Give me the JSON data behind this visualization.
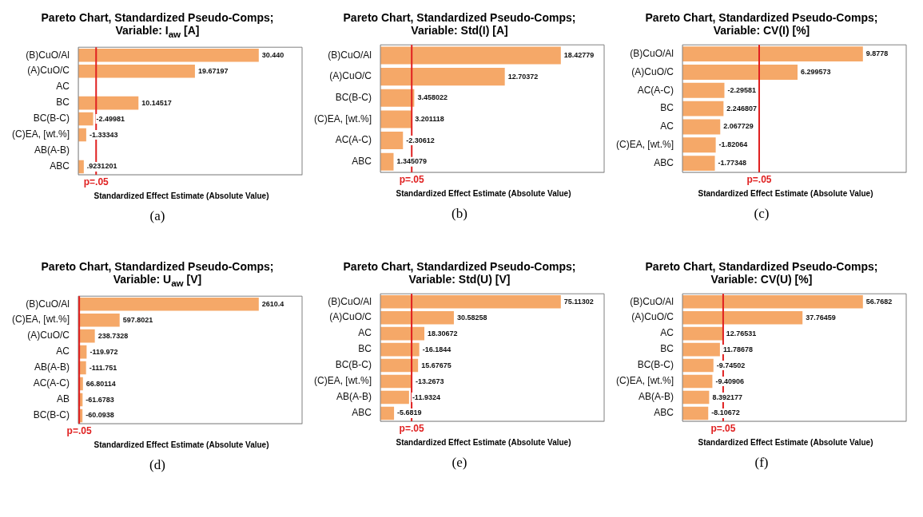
{
  "chart_data": [
    {
      "type": "bar",
      "orientation": "horizontal",
      "title": "Pareto Chart, Standardized Pseudo-Comps;",
      "subtitle": "Variable: I$_{aw}$ [A]",
      "xlabel": "Standardized Effect Estimate (Absolute Value)",
      "categories": [
        "(B)CuO/Al",
        "(A)CuO/C",
        "AC",
        "BC",
        "BC(B-C)",
        "(C)EA, [wt.%]",
        "AB(A-B)",
        "ABC"
      ],
      "values": [
        30.44,
        19.67197,
        null,
        10.14517,
        2.49981,
        1.33343,
        null,
        0.9231201
      ],
      "value_labels": [
        "30.440",
        "19.67197",
        null,
        "10.14517",
        null,
        null,
        null,
        ".9231201"
      ],
      "color": "#f5a868",
      "ref_lines": [
        {
          "axis": "x",
          "value": 3.0,
          "label": "p=.05",
          "color": "#e02020"
        }
      ],
      "tick_labels": "y",
      "annotations": [
        "(a)",
        {
          "text": "-2.49981",
          "x": 2.49981,
          "y": "BC(B-C)"
        },
        {
          "text": "-1.33343",
          "x": 1.33343,
          "y": "(C)EA, [wt.%]"
        }
      ]
    },
    {
      "type": "bar",
      "orientation": "horizontal",
      "title": "Pareto Chart, Standardized Pseudo-Comps;",
      "subtitle": "Variable: Std(I) [A]",
      "xlabel": "Standardized Effect Estimate (Absolute Value)",
      "categories": [
        "(B)CuO/Al",
        "(A)CuO/C",
        "BC(B-C)",
        "(C)EA, [wt.%]",
        "AC(A-C)",
        "ABC"
      ],
      "values": [
        18.42779,
        12.70372,
        3.458022,
        3.201118,
        2.30612,
        1.345079
      ],
      "value_labels": [
        "18.42779",
        "12.70372",
        "3.458022",
        "3.201118",
        null,
        "1.345079"
      ],
      "color": "#f5a868",
      "ref_lines": [
        {
          "axis": "x",
          "value": 3.2,
          "label": "p=.05",
          "color": "#e02020"
        }
      ],
      "tick_labels": "y",
      "annotations": [
        "(b)",
        {
          "text": "-2.30612",
          "x": 2.30612,
          "y": "AC(A-C)"
        }
      ]
    },
    {
      "type": "bar",
      "orientation": "horizontal",
      "title": "Pareto Chart, Standardized Pseudo-Comps;",
      "subtitle": "Variable: CV(I) [%]",
      "xlabel": "Standardized Effect Estimate (Absolute Value)",
      "categories": [
        "(B)CuO/Al",
        "(A)CuO/C",
        "AC(A-C)",
        "BC",
        "AC",
        "(C)EA, [wt.%]",
        "ABC"
      ],
      "values": [
        9.8778,
        6.299573,
        2.29581,
        2.246807,
        2.067729,
        1.82064,
        1.77348
      ],
      "value_labels": [
        "9.8778",
        "6.299573",
        null,
        "2.246807",
        "2.067729",
        null,
        null
      ],
      "color": "#f5a868",
      "ref_lines": [
        {
          "axis": "x",
          "value": 4.2,
          "label": "p=.05",
          "color": "#e02020"
        }
      ],
      "tick_labels": "y",
      "annotations": [
        "(c)",
        {
          "text": "-2.29581",
          "x": 2.29581,
          "y": "AC(A-C)"
        },
        {
          "text": "-1.82064",
          "x": 1.82064,
          "y": "(C)EA, [wt.%]"
        },
        {
          "text": "-1.77348",
          "x": 1.77348,
          "y": "ABC"
        }
      ]
    },
    {
      "type": "bar",
      "orientation": "horizontal",
      "title": "Pareto Chart, Standardized Pseudo-Comps;",
      "subtitle": "Variable: U$_{aw}$ [V]",
      "xlabel": "Standardized Effect Estimate (Absolute Value)",
      "categories": [
        "(B)CuO/Al",
        "(C)EA, [wt.%]",
        "(A)CuO/C",
        "AC",
        "AB(A-B)",
        "AC(A-C)",
        "AB",
        "BC(B-C)"
      ],
      "values": [
        2610.4,
        597.8021,
        238.7328,
        119.972,
        111.751,
        66.80114,
        61.6783,
        60.0938
      ],
      "value_labels": [
        "2610.4",
        "597.8021",
        "238.7328",
        null,
        null,
        "66.80114",
        null,
        null
      ],
      "color": "#f5a868",
      "ref_lines": [
        {
          "axis": "x",
          "value": 13,
          "label": "p=.05",
          "color": "#e02020"
        }
      ],
      "tick_labels": "y",
      "annotations": [
        "(d)",
        {
          "text": "-119.972",
          "x": 119.972,
          "y": "AC"
        },
        {
          "text": "-111.751",
          "x": 111.751,
          "y": "AB(A-B)"
        },
        {
          "text": "-61.6783",
          "x": 61.6783,
          "y": "AB"
        },
        {
          "text": "-60.0938",
          "x": 60.0938,
          "y": "BC(B-C)"
        }
      ]
    },
    {
      "type": "bar",
      "orientation": "horizontal",
      "title": "Pareto Chart, Standardized Pseudo-Comps;",
      "subtitle": "Variable: Std(U) [V]",
      "xlabel": "Standardized Effect Estimate (Absolute Value)",
      "categories": [
        "(B)CuO/Al",
        "(A)CuO/C",
        "AC",
        "BC",
        "BC(B-C)",
        "(C)EA, [wt.%]",
        "AB(A-B)",
        "ABC"
      ],
      "values": [
        75.11302,
        30.58258,
        18.30672,
        16.1844,
        15.67675,
        13.2673,
        11.9324,
        5.6819
      ],
      "value_labels": [
        "75.11302",
        "30.58258",
        "18.30672",
        null,
        "15.67675",
        null,
        null,
        null
      ],
      "color": "#f5a868",
      "ref_lines": [
        {
          "axis": "x",
          "value": 13,
          "label": "p=.05",
          "color": "#e02020"
        }
      ],
      "tick_labels": "y",
      "annotations": [
        "(e)",
        {
          "text": "-16.1844",
          "x": 16.1844,
          "y": "BC"
        },
        {
          "text": "-13.2673",
          "x": 13.2673,
          "y": "(C)EA, [wt.%]"
        },
        {
          "text": "-11.9324",
          "x": 11.9324,
          "y": "AB(A-B)"
        },
        {
          "text": "-5.6819",
          "x": 5.6819,
          "y": "ABC"
        }
      ]
    },
    {
      "type": "bar",
      "orientation": "horizontal",
      "title": "Pareto Chart, Standardized Pseudo-Comps;",
      "subtitle": "Variable: CV(U) [%]",
      "xlabel": "Standardized Effect Estimate (Absolute Value)",
      "categories": [
        "(B)CuO/Al",
        "(A)CuO/C",
        "AC",
        "BC",
        "BC(B-C)",
        "(C)EA, [wt.%]",
        "AB(A-B)",
        "ABC"
      ],
      "values": [
        56.7682,
        37.76459,
        12.76531,
        11.78678,
        9.74502,
        9.40906,
        8.392177,
        8.10672
      ],
      "value_labels": [
        "56.7682",
        "37.76459",
        "12.76531",
        "11.78678",
        null,
        null,
        "8.392177",
        null
      ],
      "color": "#f5a868",
      "ref_lines": [
        {
          "axis": "x",
          "value": 12.8,
          "label": "p=.05",
          "color": "#e02020"
        }
      ],
      "tick_labels": "y",
      "annotations": [
        "(f)",
        {
          "text": "-9.74502",
          "x": 9.74502,
          "y": "BC(B-C)"
        },
        {
          "text": "-9.40906",
          "x": 9.40906,
          "y": "(C)EA, [wt.%]"
        },
        {
          "text": "-8.10672",
          "x": 8.10672,
          "y": "ABC"
        }
      ]
    }
  ]
}
